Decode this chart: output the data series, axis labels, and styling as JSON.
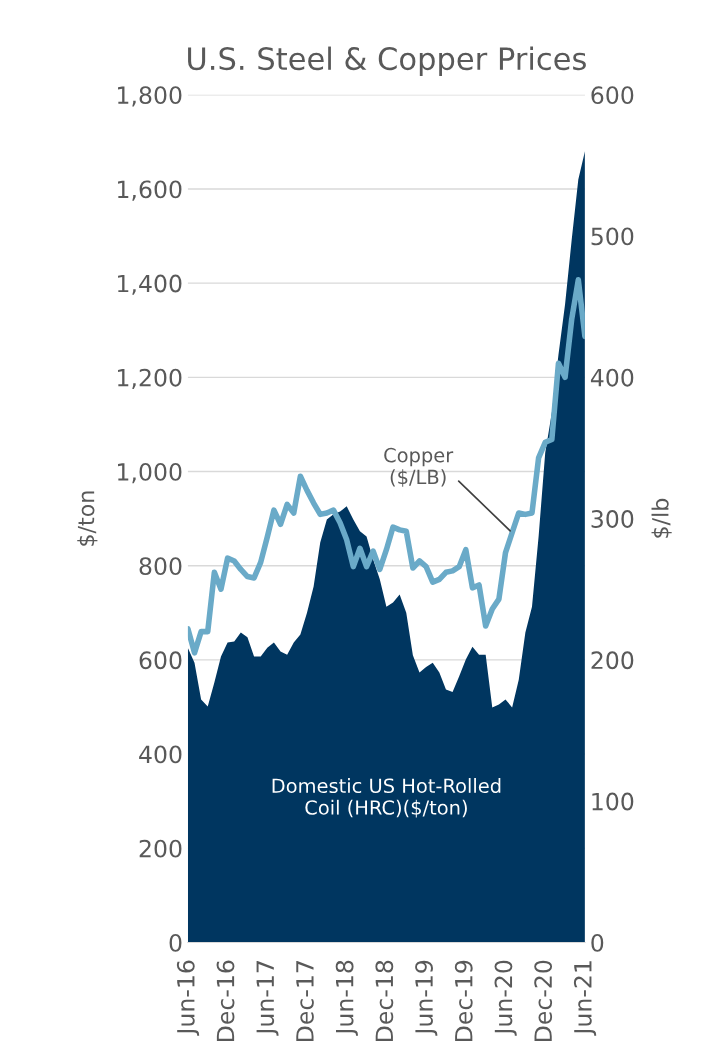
{
  "chart_data": {
    "type": "area",
    "title": "U.S. Steel & Copper Prices",
    "ylabel": "$/ton",
    "y2label": "$/lb",
    "categories": [
      "Jun-16",
      null,
      null,
      null,
      null,
      null,
      "Dec-16",
      null,
      null,
      null,
      null,
      null,
      "Jun-17",
      null,
      null,
      null,
      null,
      null,
      "Dec-17",
      null,
      null,
      null,
      null,
      null,
      "Jun-18",
      null,
      null,
      null,
      null,
      null,
      "Dec-18",
      null,
      null,
      null,
      null,
      null,
      "Jun-19",
      null,
      null,
      null,
      null,
      null,
      "Dec-19",
      null,
      null,
      null,
      null,
      null,
      "Jun-20",
      null,
      null,
      null,
      null,
      null,
      "Dec-20",
      null,
      null,
      null,
      null,
      null,
      "Jun-21"
    ],
    "series": [
      {
        "name": "Domestic US Hot-Rolled\nCoil (HRC)($/ton)",
        "color": "#003660",
        "values": [
          625,
          594,
          516,
          501,
          552,
          607,
          637,
          639,
          658,
          648,
          607,
          607,
          626,
          637,
          618,
          611,
          637,
          654,
          700,
          756,
          849,
          898,
          909,
          915,
          926,
          898,
          873,
          862,
          813,
          771,
          713,
          722,
          739,
          700,
          610,
          573,
          585,
          594,
          573,
          537,
          532,
          565,
          601,
          628,
          611,
          611,
          499,
          505,
          516,
          499,
          558,
          658,
          713,
          862,
          1040,
          1125,
          1248,
          1355,
          1492,
          1620,
          1680
        ]
      },
      {
        "name": "Copper\n($/LB)",
        "type": "line",
        "axis": "y2",
        "color": "#6aaac8",
        "values": [
          222,
          205,
          220,
          220,
          262,
          250,
          272,
          270,
          264,
          259,
          258,
          269,
          287,
          306,
          296,
          310,
          304,
          330,
          320,
          311,
          303,
          304,
          306,
          297,
          285,
          266,
          279,
          266,
          277,
          264,
          278,
          294,
          292,
          291,
          265,
          270,
          266,
          255,
          257,
          262,
          263,
          266,
          278,
          251,
          253,
          224,
          236,
          243,
          276,
          290,
          304,
          303,
          304,
          343,
          354,
          356,
          410,
          400,
          441,
          469,
          429
        ]
      }
    ],
    "ylim": [
      0,
      1800
    ],
    "yticks": [
      0,
      200,
      400,
      600,
      800,
      {
        "value": 1000,
        "label": "1,000"
      },
      {
        "value": 1200,
        "label": "1,200"
      },
      {
        "value": 1400,
        "label": "1,400"
      },
      {
        "value": 1600,
        "label": "1,600"
      },
      {
        "value": 1800,
        "label": "1,800"
      }
    ],
    "y2lim": [
      0,
      600
    ],
    "y2ticks": [
      0,
      100,
      200,
      300,
      400,
      500,
      600
    ],
    "grid": "y",
    "legend": false
  }
}
